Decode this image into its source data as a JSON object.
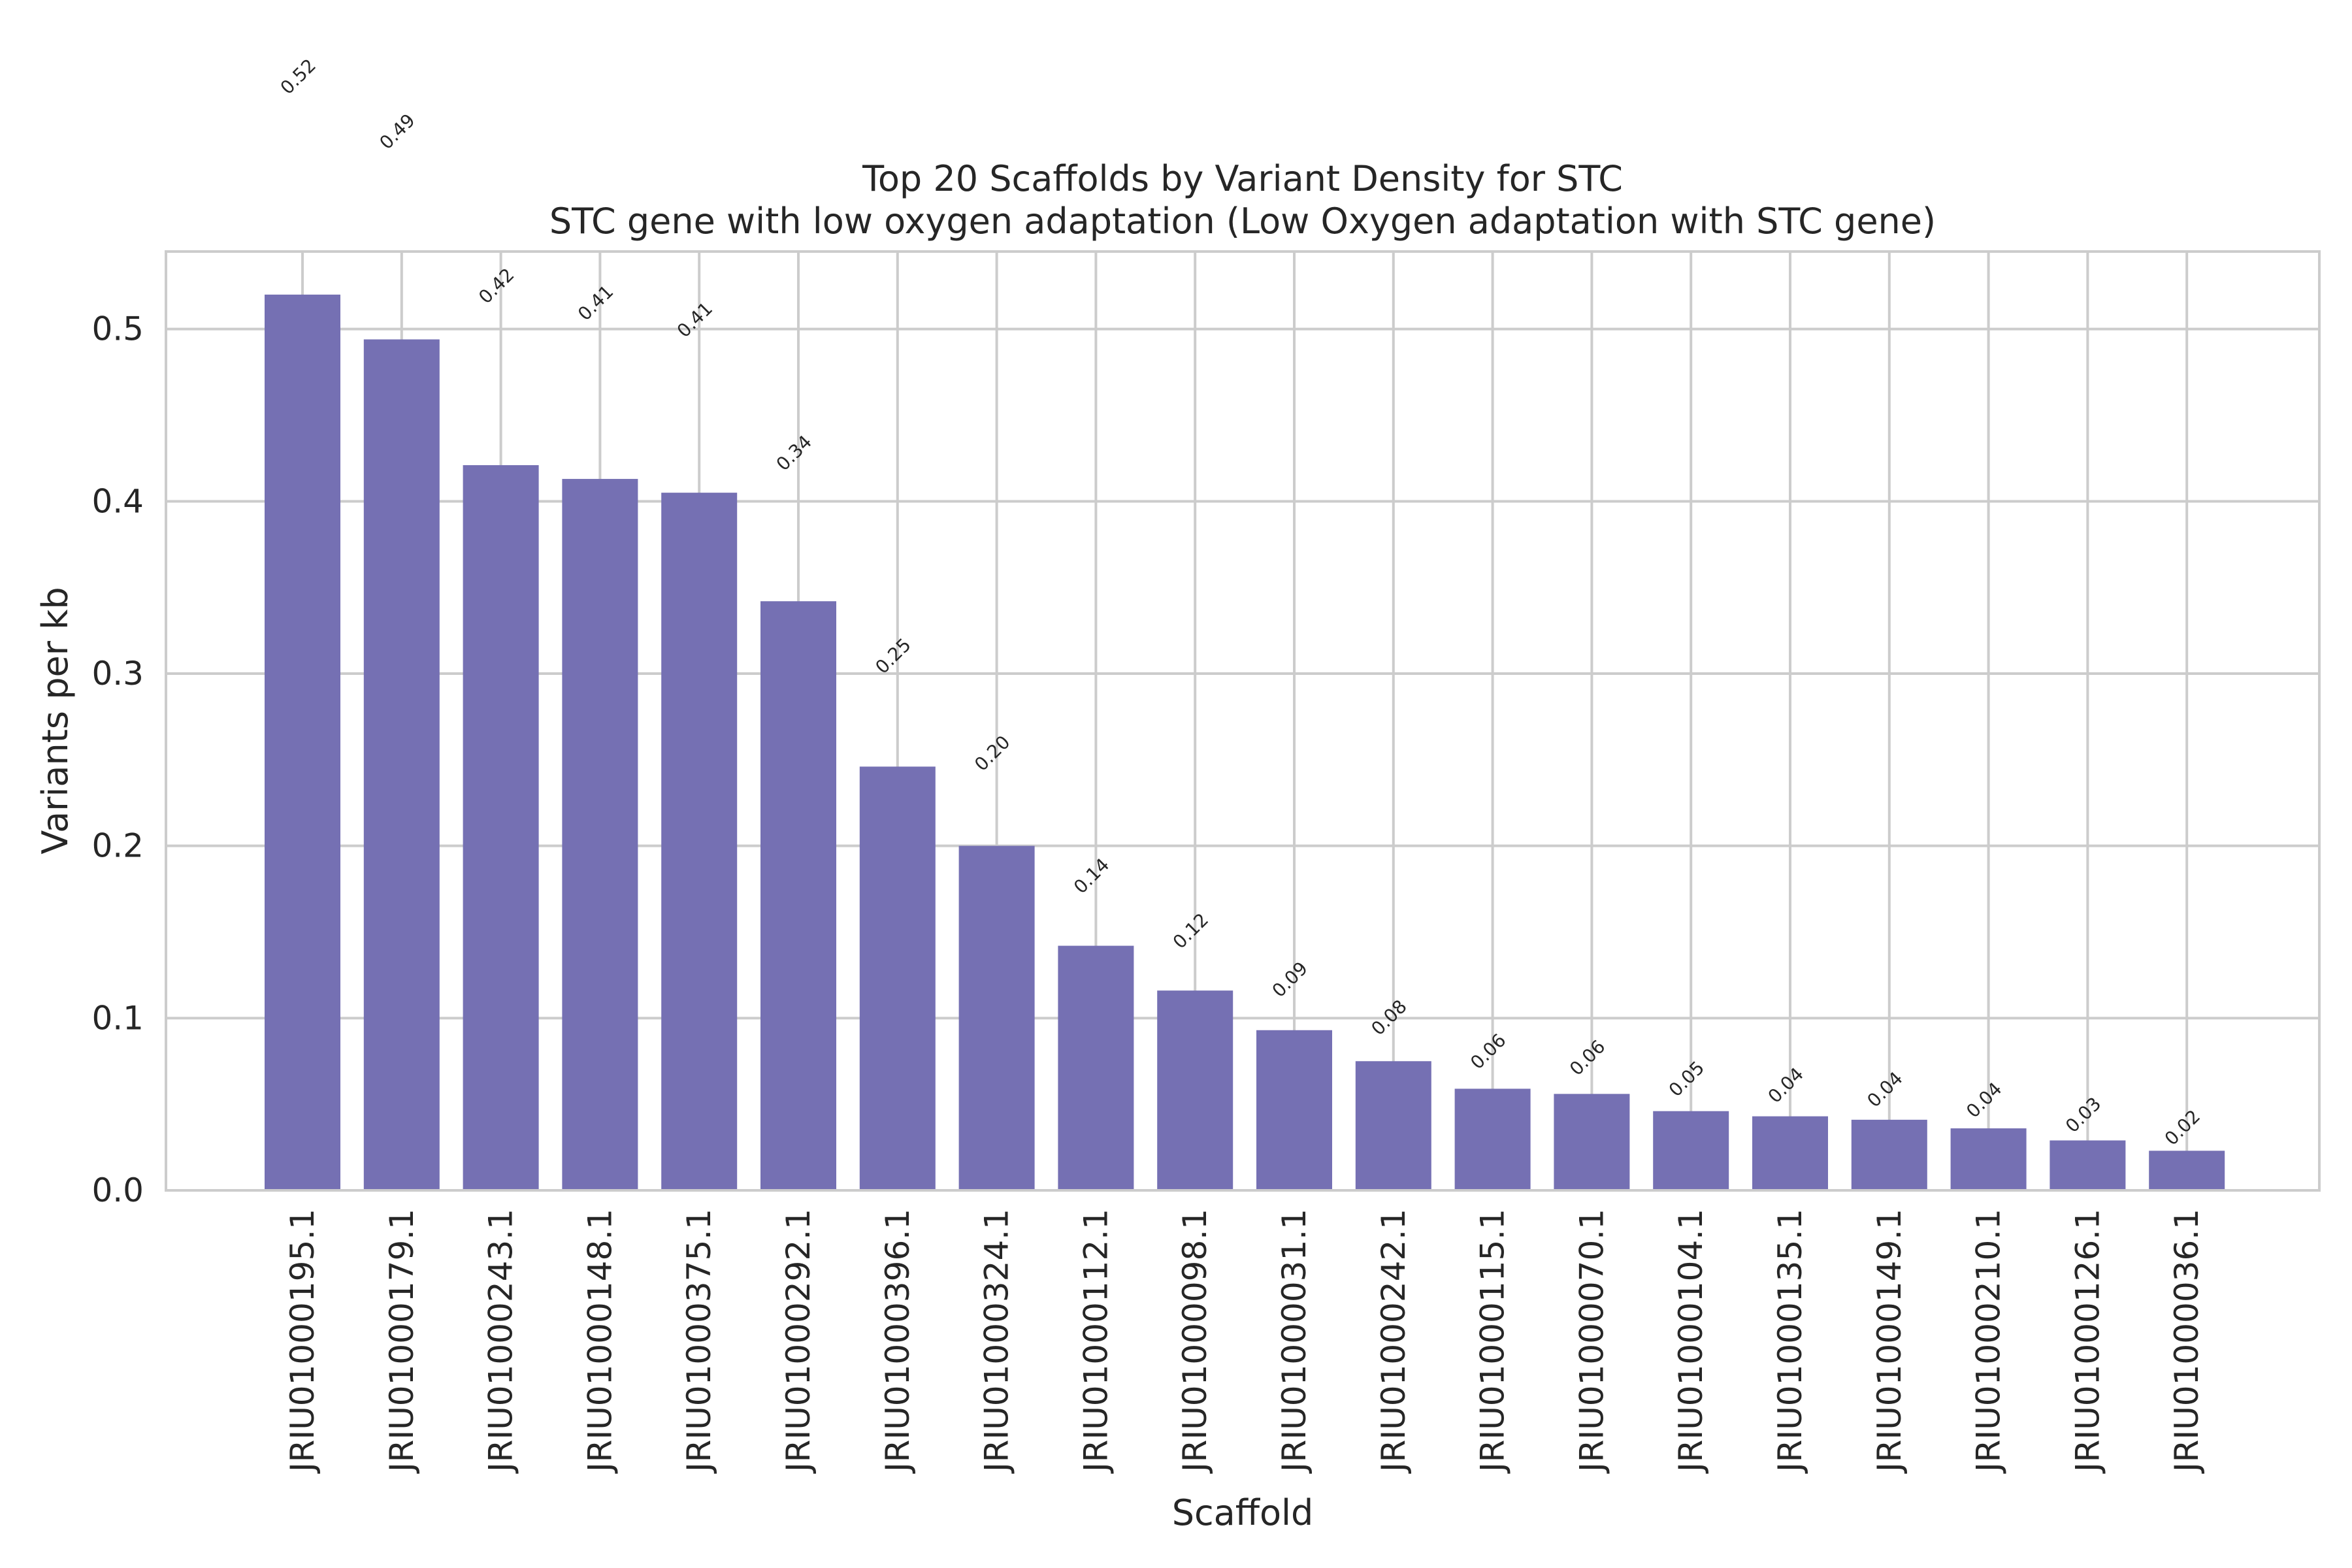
{
  "chart_data": {
    "type": "bar",
    "title": "Top 20 Scaffolds by Variant Density for STC",
    "subtitle": "STC gene with low oxygen adaptation (Low Oxygen adaptation with STC gene)",
    "xlabel": "Scaffold",
    "ylabel": "Variants per kb",
    "ylim": [
      0,
      0.545
    ],
    "yticks": [
      0.0,
      0.1,
      0.2,
      0.3,
      0.4,
      0.5
    ],
    "ytick_labels": [
      "0.0",
      "0.1",
      "0.2",
      "0.3",
      "0.4",
      "0.5"
    ],
    "grid": true,
    "bar_color": "#7570b3",
    "categories": [
      "JRIU01000195.1",
      "JRIU01000179.1",
      "JRIU01000243.1",
      "JRIU01000148.1",
      "JRIU01000375.1",
      "JRIU01000292.1",
      "JRIU01000396.1",
      "JRIU01000324.1",
      "JRIU01000112.1",
      "JRIU01000098.1",
      "JRIU01000031.1",
      "JRIU01000242.1",
      "JRIU01000115.1",
      "JRIU01000070.1",
      "JRIU01000104.1",
      "JRIU01000135.1",
      "JRIU01000149.1",
      "JRIU01000210.1",
      "JRIU01000126.1",
      "JRIU01000036.1"
    ],
    "values": [
      0.52,
      0.494,
      0.421,
      0.413,
      0.405,
      0.342,
      0.246,
      0.2,
      0.142,
      0.116,
      0.093,
      0.075,
      0.059,
      0.056,
      0.046,
      0.043,
      0.041,
      0.036,
      0.029,
      0.023
    ],
    "value_labels": [
      "0.52",
      "0.49",
      "0.42",
      "0.41",
      "0.41",
      "0.34",
      "0.25",
      "0.20",
      "0.14",
      "0.12",
      "0.09",
      "0.08",
      "0.06",
      "0.06",
      "0.05",
      "0.04",
      "0.04",
      "0.04",
      "0.03",
      "0.02"
    ]
  }
}
